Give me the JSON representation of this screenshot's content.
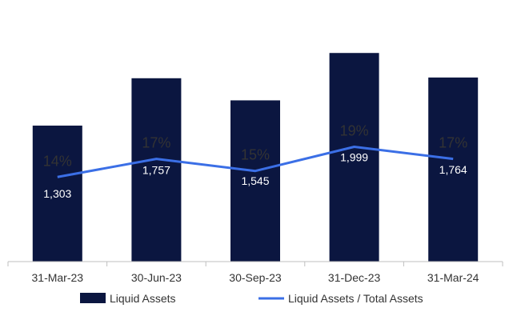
{
  "chart_data": {
    "type": "bar",
    "categories": [
      "31-Mar-23",
      "30-Jun-23",
      "30-Sep-23",
      "31-Dec-23",
      "31-Mar-24"
    ],
    "series": [
      {
        "name": "Liquid Assets",
        "type": "bar",
        "values": [
          1303,
          1757,
          1545,
          1999,
          1764
        ],
        "labels": [
          "1,303",
          "1,757",
          "1,545",
          "1,999",
          "1,764"
        ],
        "color": "#0b1640"
      },
      {
        "name": "Liquid Assets / Total Assets",
        "type": "line",
        "values": [
          14,
          17,
          15,
          19,
          17
        ],
        "labels": [
          "14%",
          "17%",
          "15%",
          "19%",
          "17%"
        ],
        "unit": "%",
        "color": "#3b6fe6"
      }
    ],
    "ylim": [
      0,
      2200
    ],
    "y2lim": [
      0,
      38
    ],
    "grid": false,
    "legend": "bottom"
  }
}
